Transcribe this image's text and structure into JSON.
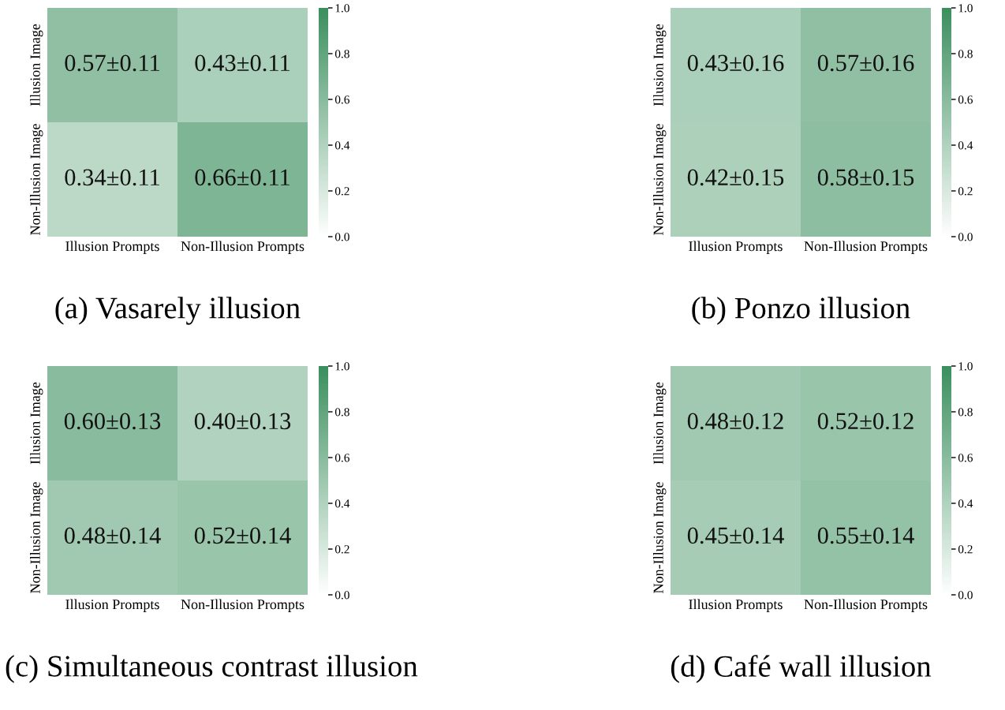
{
  "chart_data": [
    {
      "type": "heatmap",
      "title": "(a) Vasarely illusion",
      "categories": [
        "Illusion Prompts",
        "Non-Illusion Prompts"
      ],
      "y_categories": [
        "Illusion Image",
        "Non-Illusion Image"
      ],
      "cells": [
        [
          0.57,
          0.43
        ],
        [
          0.34,
          0.66
        ]
      ],
      "cell_labels": [
        [
          "0.57±0.11",
          "0.43±0.11"
        ],
        [
          "0.34±0.11",
          "0.66±0.11"
        ]
      ],
      "clim": [
        0,
        1
      ],
      "cticks": [
        {
          "value": 0,
          "label": "0.0"
        },
        {
          "value": 0.2,
          "label": "0.2"
        },
        {
          "value": 0.4,
          "label": "0.4"
        },
        {
          "value": 0.6,
          "label": "0.6"
        },
        {
          "value": 0.8,
          "label": "0.8"
        },
        {
          "value": 1,
          "label": "1.0"
        }
      ]
    },
    {
      "type": "heatmap",
      "title": "(b) Ponzo illusion",
      "categories": [
        "Illusion Prompts",
        "Non-Illusion Prompts"
      ],
      "y_categories": [
        "Illusion Image",
        "Non-Illusion Image"
      ],
      "cells": [
        [
          0.43,
          0.57
        ],
        [
          0.42,
          0.58
        ]
      ],
      "cell_labels": [
        [
          "0.43±0.16",
          "0.57±0.16"
        ],
        [
          "0.42±0.15",
          "0.58±0.15"
        ]
      ],
      "clim": [
        0,
        1
      ],
      "cticks": [
        {
          "value": 0,
          "label": "0.0"
        },
        {
          "value": 0.2,
          "label": "0.2"
        },
        {
          "value": 0.4,
          "label": "0.4"
        },
        {
          "value": 0.6,
          "label": "0.6"
        },
        {
          "value": 0.8,
          "label": "0.8"
        },
        {
          "value": 1,
          "label": "1.0"
        }
      ]
    },
    {
      "type": "heatmap",
      "title": "(c) Simultaneous contrast illusion",
      "categories": [
        "Illusion Prompts",
        "Non-Illusion Prompts"
      ],
      "y_categories": [
        "Illusion Image",
        "Non-Illusion Image"
      ],
      "cells": [
        [
          0.6,
          0.4
        ],
        [
          0.48,
          0.52
        ]
      ],
      "cell_labels": [
        [
          "0.60±0.13",
          "0.40±0.13"
        ],
        [
          "0.48±0.14",
          "0.52±0.14"
        ]
      ],
      "clim": [
        0,
        1
      ],
      "cticks": [
        {
          "value": 0,
          "label": "0.0"
        },
        {
          "value": 0.2,
          "label": "0.2"
        },
        {
          "value": 0.4,
          "label": "0.4"
        },
        {
          "value": 0.6,
          "label": "0.6"
        },
        {
          "value": 0.8,
          "label": "0.8"
        },
        {
          "value": 1,
          "label": "1.0"
        }
      ]
    },
    {
      "type": "heatmap",
      "title": "(d) Café wall illusion",
      "categories": [
        "Illusion Prompts",
        "Non-Illusion Prompts"
      ],
      "y_categories": [
        "Illusion Image",
        "Non-Illusion Image"
      ],
      "cells": [
        [
          0.48,
          0.52
        ],
        [
          0.45,
          0.55
        ]
      ],
      "cell_labels": [
        [
          "0.48±0.12",
          "0.52±0.12"
        ],
        [
          "0.45±0.14",
          "0.55±0.14"
        ]
      ],
      "clim": [
        0,
        1
      ],
      "cticks": [
        {
          "value": 0,
          "label": "0.0"
        },
        {
          "value": 0.2,
          "label": "0.2"
        },
        {
          "value": 0.4,
          "label": "0.4"
        },
        {
          "value": 0.6,
          "label": "0.6"
        },
        {
          "value": 0.8,
          "label": "0.8"
        },
        {
          "value": 1,
          "label": "1.0"
        }
      ]
    }
  ]
}
